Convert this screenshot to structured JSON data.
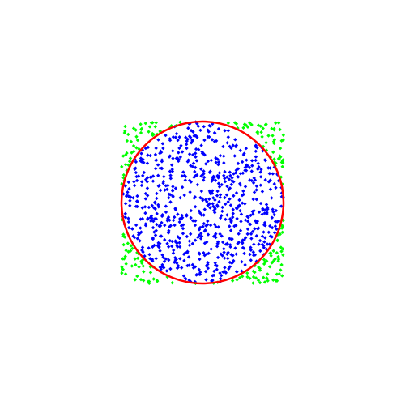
{
  "chart_data": {
    "type": "scatter",
    "title": "",
    "xlabel": "",
    "ylabel": "",
    "xlim": [
      -1,
      1
    ],
    "ylim": [
      -1,
      1
    ],
    "grid": false,
    "legend": "none",
    "sample_count": 1000,
    "series": [
      {
        "role": "inside",
        "color": "#0000ff",
        "marker": "diamond"
      },
      {
        "role": "outside",
        "color": "#00ff00",
        "marker": "diamond"
      }
    ],
    "overlays": [
      {
        "shape": "circle",
        "center": [
          0,
          0
        ],
        "radius": 1,
        "color": "#ff0000"
      }
    ],
    "colors": {
      "background": "#ffffff",
      "inside_points": "#0000ff",
      "outside_points": "#00ff00",
      "circle": "#ff0000"
    }
  }
}
